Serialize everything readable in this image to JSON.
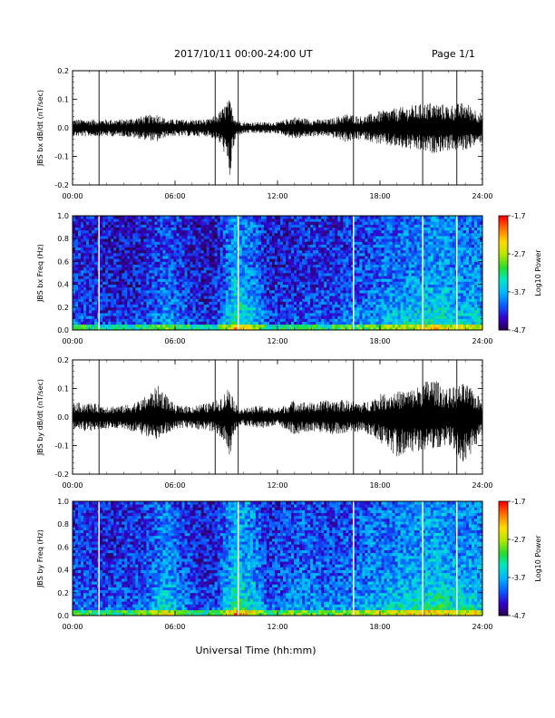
{
  "header": {
    "date_range": "2017/10/11  00:00-24:00 UT",
    "page": "Page 1/1"
  },
  "colors": {
    "trace": "#000000",
    "spectrogram_background": "#2a0a32",
    "colorbar": [
      "#2a0046",
      "#3300cc",
      "#0a5cff",
      "#00b4ff",
      "#00e6c8",
      "#28dc28",
      "#b4e600",
      "#ffdc00",
      "#ff7800",
      "#ff0000"
    ]
  },
  "chart_data": [
    {
      "type": "line",
      "panel": "bx_timeseries",
      "ylabel": "JBS bx dB/dt (nT/sec)",
      "xlabel": "",
      "ylim": [
        -0.2,
        0.2
      ],
      "yticks": [
        "0.2",
        "0.1",
        "0.0",
        "-0.1",
        "-0.2"
      ],
      "xticks": [
        "00:00",
        "06:00",
        "12:00",
        "18:00",
        "24:00"
      ],
      "xlim_hours": [
        0,
        24
      ],
      "series": [
        {
          "x": [
            0,
            1,
            2,
            3,
            4,
            5,
            5.5,
            6,
            7,
            8,
            8.5,
            8.8,
            9.0,
            9.2,
            9.4,
            9.6,
            10,
            11,
            12,
            13,
            14,
            15,
            16,
            17,
            18,
            19,
            20,
            21,
            22,
            23,
            24
          ],
          "y_max": [
            0.03,
            0.03,
            0.03,
            0.03,
            0.04,
            0.05,
            0.03,
            0.03,
            0.03,
            0.03,
            0.05,
            0.07,
            0.09,
            0.1,
            0.06,
            0.03,
            0.02,
            0.02,
            0.02,
            0.04,
            0.03,
            0.03,
            0.05,
            0.04,
            0.06,
            0.07,
            0.08,
            0.09,
            0.08,
            0.09,
            0.05
          ],
          "y_min": [
            -0.03,
            -0.03,
            -0.03,
            -0.03,
            -0.04,
            -0.05,
            -0.03,
            -0.03,
            -0.03,
            -0.03,
            -0.05,
            -0.07,
            -0.12,
            -0.19,
            -0.08,
            -0.03,
            -0.02,
            -0.02,
            -0.02,
            -0.04,
            -0.03,
            -0.03,
            -0.05,
            -0.04,
            -0.06,
            -0.07,
            -0.08,
            -0.09,
            -0.08,
            -0.08,
            -0.05
          ]
        }
      ],
      "vertical_lines_hours": [
        1.55,
        8.35,
        9.7,
        16.45,
        20.5,
        22.5
      ]
    },
    {
      "type": "heatmap",
      "panel": "bx_spectrogram",
      "ylabel": "JBS bx Freq (Hz)",
      "xlabel": "",
      "ylim": [
        0.0,
        1.0
      ],
      "yticks": [
        "1.0",
        "0.8",
        "0.6",
        "0.4",
        "0.2",
        "0.0"
      ],
      "xticks": [
        "00:00",
        "06:00",
        "12:00",
        "18:00",
        "24:00"
      ],
      "xlim_hours": [
        0,
        24
      ],
      "colorbar": {
        "label": "Log10 Power",
        "ticks": [
          "-1.7",
          "-2.7",
          "-3.7",
          "-4.7"
        ],
        "range": [
          -4.7,
          -1.7
        ]
      },
      "activity_by_hour": [
        0.35,
        0.3,
        0.25,
        0.25,
        0.35,
        0.5,
        0.35,
        0.25,
        0.3,
        0.75,
        0.6,
        0.3,
        0.3,
        0.35,
        0.35,
        0.35,
        0.45,
        0.45,
        0.55,
        0.6,
        0.65,
        0.7,
        0.6,
        0.6
      ],
      "vertical_lines_hours": [
        1.55,
        9.7,
        16.45,
        20.5,
        22.5
      ]
    },
    {
      "type": "line",
      "panel": "by_timeseries",
      "ylabel": "JBS by dB/dt (nT/sec)",
      "xlabel": "",
      "ylim": [
        -0.2,
        0.2
      ],
      "yticks": [
        "0.2",
        "0.1",
        "0.0",
        "-0.1",
        "-0.2"
      ],
      "xticks": [
        "00:00",
        "06:00",
        "12:00",
        "18:00",
        "24:00"
      ],
      "xlim_hours": [
        0,
        24
      ],
      "series": [
        {
          "x": [
            0,
            1,
            2,
            3,
            4,
            5,
            5.5,
            6,
            7,
            8,
            8.5,
            8.8,
            9.0,
            9.2,
            9.4,
            9.6,
            10,
            11,
            12,
            13,
            14,
            15,
            16,
            17,
            18,
            19,
            20,
            21,
            22,
            23,
            24
          ],
          "y_max": [
            0.05,
            0.05,
            0.04,
            0.04,
            0.06,
            0.11,
            0.08,
            0.04,
            0.04,
            0.05,
            0.06,
            0.08,
            0.09,
            0.12,
            0.07,
            0.04,
            0.03,
            0.04,
            0.03,
            0.06,
            0.05,
            0.06,
            0.06,
            0.05,
            0.08,
            0.09,
            0.1,
            0.14,
            0.1,
            0.12,
            0.06
          ],
          "y_min": [
            -0.05,
            -0.05,
            -0.04,
            -0.04,
            -0.06,
            -0.08,
            -0.06,
            -0.04,
            -0.04,
            -0.05,
            -0.06,
            -0.08,
            -0.1,
            -0.15,
            -0.08,
            -0.04,
            -0.03,
            -0.04,
            -0.03,
            -0.06,
            -0.05,
            -0.06,
            -0.06,
            -0.05,
            -0.09,
            -0.14,
            -0.12,
            -0.12,
            -0.1,
            -0.18,
            -0.06
          ]
        }
      ],
      "vertical_lines_hours": [
        1.55,
        8.35,
        9.7,
        16.45,
        20.5,
        22.5
      ]
    },
    {
      "type": "heatmap",
      "panel": "by_spectrogram",
      "ylabel": "JBS by Freq (Hz)",
      "xlabel": "Universal Time (hh:mm)",
      "ylim": [
        0.0,
        1.0
      ],
      "yticks": [
        "1.0",
        "0.8",
        "0.6",
        "0.4",
        "0.2",
        "0.0"
      ],
      "xticks": [
        "00:00",
        "06:00",
        "12:00",
        "18:00",
        "24:00"
      ],
      "xlim_hours": [
        0,
        24
      ],
      "colorbar": {
        "label": "Log10 Power",
        "ticks": [
          "-1.7",
          "-2.7",
          "-3.7",
          "-4.7"
        ],
        "range": [
          -4.7,
          -1.7
        ]
      },
      "activity_by_hour": [
        0.4,
        0.35,
        0.35,
        0.35,
        0.45,
        0.65,
        0.45,
        0.3,
        0.35,
        0.8,
        0.65,
        0.35,
        0.45,
        0.5,
        0.45,
        0.45,
        0.5,
        0.55,
        0.6,
        0.65,
        0.7,
        0.75,
        0.65,
        0.65
      ],
      "vertical_lines_hours": [
        1.55,
        9.7,
        16.45,
        20.5,
        22.5
      ]
    }
  ]
}
